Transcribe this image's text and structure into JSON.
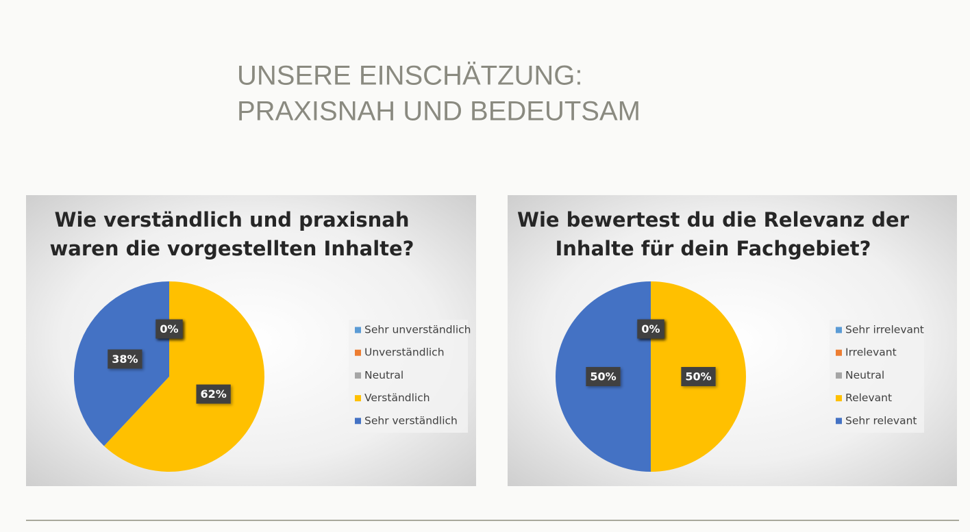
{
  "slide": {
    "title": [
      "UNSERE EINSCHÄTZUNG:",
      "PRAXISNAH UND BEDEUTSAM"
    ]
  },
  "chart_data": [
    {
      "type": "pie",
      "title": [
        "Wie verständlich und praxisnah",
        "waren die vorgestellten Inhalte?"
      ],
      "categories": [
        "Sehr unverständlich",
        "Unverständlich",
        "Neutral",
        "Verständlich",
        "Sehr verständlich"
      ],
      "values": [
        0,
        0,
        0,
        62,
        38
      ],
      "value_labels": [
        "0%",
        "0%",
        "0%",
        "62%",
        "38%"
      ],
      "colors": [
        "#5b9bd5",
        "#ed7d31",
        "#a5a5a5",
        "#ffc000",
        "#4472c4"
      ],
      "legend": "right"
    },
    {
      "type": "pie",
      "title": [
        "Wie bewertest du die Relevanz der",
        "Inhalte für dein Fachgebiet?"
      ],
      "categories": [
        "Sehr irrelevant",
        "Irrelevant",
        "Neutral",
        "Relevant",
        "Sehr relevant"
      ],
      "values": [
        0,
        0,
        0,
        50,
        50
      ],
      "value_labels": [
        "0%",
        "0%",
        "0%",
        "50%",
        "50%"
      ],
      "colors": [
        "#5b9bd5",
        "#ed7d31",
        "#a5a5a5",
        "#ffc000",
        "#4472c4"
      ],
      "legend": "right"
    }
  ]
}
